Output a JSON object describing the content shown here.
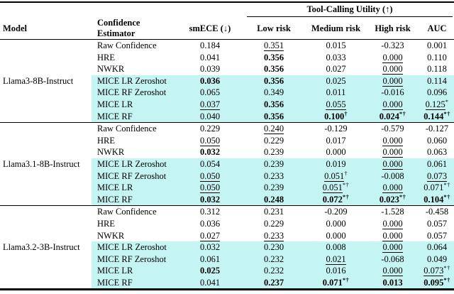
{
  "header": {
    "span_title": "Tool-Calling Utility (↑)",
    "col_model": "Model",
    "col_estimator": "Confidence Estimator",
    "col_smece": "smECE (↓)",
    "subcols": [
      "Low risk",
      "Medium risk",
      "High risk",
      "AUC"
    ]
  },
  "colors": {
    "highlight": "#c5f5f3",
    "rule": "#000000",
    "background": "#ffffff"
  },
  "chart_data": {
    "type": "table",
    "title": "Tool-Calling Utility (↑)",
    "columns": [
      "Model",
      "Confidence Estimator",
      "smECE (↓)",
      "Low risk",
      "Medium risk",
      "High risk",
      "AUC"
    ]
  },
  "groups": [
    {
      "model": "Llama3-8B-Instruct",
      "rows": [
        {
          "estimator": "Raw Confidence",
          "highlighted": false,
          "values": [
            {
              "text": "0.184",
              "bold": false,
              "underline": false,
              "sup": ""
            },
            {
              "text": "0.351",
              "bold": false,
              "underline": true,
              "sup": ""
            },
            {
              "text": "0.015",
              "bold": false,
              "underline": false,
              "sup": ""
            },
            {
              "text": "-0.323",
              "bold": false,
              "underline": false,
              "sup": ""
            },
            {
              "text": "0.001",
              "bold": false,
              "underline": false,
              "sup": ""
            }
          ]
        },
        {
          "estimator": "HRE",
          "highlighted": false,
          "values": [
            {
              "text": "0.041",
              "bold": false,
              "underline": false,
              "sup": ""
            },
            {
              "text": "0.356",
              "bold": true,
              "underline": false,
              "sup": ""
            },
            {
              "text": "0.033",
              "bold": false,
              "underline": false,
              "sup": ""
            },
            {
              "text": "0.000",
              "bold": false,
              "underline": true,
              "sup": ""
            },
            {
              "text": "0.110",
              "bold": false,
              "underline": false,
              "sup": ""
            }
          ]
        },
        {
          "estimator": "NWKR",
          "highlighted": false,
          "values": [
            {
              "text": "0.039",
              "bold": false,
              "underline": false,
              "sup": ""
            },
            {
              "text": "0.356",
              "bold": true,
              "underline": false,
              "sup": ""
            },
            {
              "text": "0.027",
              "bold": false,
              "underline": false,
              "sup": ""
            },
            {
              "text": "0.000",
              "bold": false,
              "underline": true,
              "sup": ""
            },
            {
              "text": "0.118",
              "bold": false,
              "underline": false,
              "sup": ""
            }
          ]
        },
        {
          "estimator": "MICE LR Zeroshot",
          "highlighted": true,
          "values": [
            {
              "text": "0.036",
              "bold": true,
              "underline": false,
              "sup": ""
            },
            {
              "text": "0.356",
              "bold": true,
              "underline": false,
              "sup": ""
            },
            {
              "text": "0.025",
              "bold": false,
              "underline": false,
              "sup": ""
            },
            {
              "text": "0.000",
              "bold": false,
              "underline": true,
              "sup": ""
            },
            {
              "text": "0.114",
              "bold": false,
              "underline": false,
              "sup": ""
            }
          ]
        },
        {
          "estimator": "MICE RF Zeroshot",
          "highlighted": true,
          "values": [
            {
              "text": "0.065",
              "bold": false,
              "underline": false,
              "sup": ""
            },
            {
              "text": "0.349",
              "bold": false,
              "underline": false,
              "sup": ""
            },
            {
              "text": "0.011",
              "bold": false,
              "underline": false,
              "sup": ""
            },
            {
              "text": "-0.016",
              "bold": false,
              "underline": false,
              "sup": ""
            },
            {
              "text": "0.096",
              "bold": false,
              "underline": false,
              "sup": ""
            }
          ]
        },
        {
          "estimator": "MICE LR",
          "highlighted": true,
          "values": [
            {
              "text": "0.037",
              "bold": false,
              "underline": true,
              "sup": ""
            },
            {
              "text": "0.356",
              "bold": true,
              "underline": false,
              "sup": ""
            },
            {
              "text": "0.055",
              "bold": false,
              "underline": true,
              "sup": ""
            },
            {
              "text": "0.000",
              "bold": false,
              "underline": true,
              "sup": ""
            },
            {
              "text": "0.125",
              "bold": false,
              "underline": true,
              "sup": "*"
            }
          ]
        },
        {
          "estimator": "MICE RF",
          "highlighted": true,
          "values": [
            {
              "text": "0.040",
              "bold": false,
              "underline": false,
              "sup": ""
            },
            {
              "text": "0.356",
              "bold": true,
              "underline": false,
              "sup": ""
            },
            {
              "text": "0.100",
              "bold": true,
              "underline": false,
              "sup": "†"
            },
            {
              "text": "0.024",
              "bold": true,
              "underline": false,
              "sup": "*†"
            },
            {
              "text": "0.144",
              "bold": true,
              "underline": false,
              "sup": "*†"
            }
          ]
        }
      ]
    },
    {
      "model": "Llama3.1-8B-Instruct",
      "rows": [
        {
          "estimator": "Raw Confidence",
          "highlighted": false,
          "values": [
            {
              "text": "0.229",
              "bold": false,
              "underline": false,
              "sup": ""
            },
            {
              "text": "0.240",
              "bold": false,
              "underline": true,
              "sup": ""
            },
            {
              "text": "-0.129",
              "bold": false,
              "underline": false,
              "sup": ""
            },
            {
              "text": "-0.579",
              "bold": false,
              "underline": false,
              "sup": ""
            },
            {
              "text": "-0.127",
              "bold": false,
              "underline": false,
              "sup": ""
            }
          ]
        },
        {
          "estimator": "HRE",
          "highlighted": false,
          "values": [
            {
              "text": "0.050",
              "bold": false,
              "underline": true,
              "sup": ""
            },
            {
              "text": "0.229",
              "bold": false,
              "underline": false,
              "sup": ""
            },
            {
              "text": "0.017",
              "bold": false,
              "underline": false,
              "sup": ""
            },
            {
              "text": "0.000",
              "bold": false,
              "underline": true,
              "sup": ""
            },
            {
              "text": "0.060",
              "bold": false,
              "underline": false,
              "sup": ""
            }
          ]
        },
        {
          "estimator": "NWKR",
          "highlighted": false,
          "values": [
            {
              "text": "0.032",
              "bold": true,
              "underline": false,
              "sup": ""
            },
            {
              "text": "0.239",
              "bold": false,
              "underline": false,
              "sup": ""
            },
            {
              "text": "0.000",
              "bold": false,
              "underline": false,
              "sup": ""
            },
            {
              "text": "0.000",
              "bold": false,
              "underline": true,
              "sup": ""
            },
            {
              "text": "0.063",
              "bold": false,
              "underline": false,
              "sup": ""
            }
          ]
        },
        {
          "estimator": "MICE LR Zeroshot",
          "highlighted": true,
          "values": [
            {
              "text": "0.054",
              "bold": false,
              "underline": false,
              "sup": ""
            },
            {
              "text": "0.239",
              "bold": false,
              "underline": false,
              "sup": ""
            },
            {
              "text": "0.019",
              "bold": false,
              "underline": false,
              "sup": ""
            },
            {
              "text": "0.000",
              "bold": false,
              "underline": true,
              "sup": ""
            },
            {
              "text": "0.061",
              "bold": false,
              "underline": false,
              "sup": ""
            }
          ]
        },
        {
          "estimator": "MICE RF Zeroshot",
          "highlighted": true,
          "values": [
            {
              "text": "0.050",
              "bold": false,
              "underline": true,
              "sup": ""
            },
            {
              "text": "0.233",
              "bold": false,
              "underline": false,
              "sup": ""
            },
            {
              "text": "0.051",
              "bold": false,
              "underline": true,
              "sup": "†"
            },
            {
              "text": "-0.008",
              "bold": false,
              "underline": false,
              "sup": ""
            },
            {
              "text": "0.073",
              "bold": false,
              "underline": true,
              "sup": ""
            }
          ]
        },
        {
          "estimator": "MICE LR",
          "highlighted": true,
          "values": [
            {
              "text": "0.050",
              "bold": false,
              "underline": true,
              "sup": ""
            },
            {
              "text": "0.239",
              "bold": false,
              "underline": false,
              "sup": ""
            },
            {
              "text": "0.051",
              "bold": false,
              "underline": true,
              "sup": "*†"
            },
            {
              "text": "0.000",
              "bold": false,
              "underline": true,
              "sup": ""
            },
            {
              "text": "0.071",
              "bold": false,
              "underline": false,
              "sup": "*†"
            }
          ]
        },
        {
          "estimator": "MICE RF",
          "highlighted": true,
          "values": [
            {
              "text": "0.032",
              "bold": true,
              "underline": false,
              "sup": ""
            },
            {
              "text": "0.248",
              "bold": true,
              "underline": false,
              "sup": ""
            },
            {
              "text": "0.072",
              "bold": true,
              "underline": false,
              "sup": "*†"
            },
            {
              "text": "0.023",
              "bold": true,
              "underline": false,
              "sup": "*†"
            },
            {
              "text": "0.104",
              "bold": true,
              "underline": false,
              "sup": "*†"
            }
          ]
        }
      ]
    },
    {
      "model": "Llama3.2-3B-Instruct",
      "rows": [
        {
          "estimator": "Raw Confidence",
          "highlighted": false,
          "values": [
            {
              "text": "0.312",
              "bold": false,
              "underline": false,
              "sup": ""
            },
            {
              "text": "0.231",
              "bold": false,
              "underline": false,
              "sup": ""
            },
            {
              "text": "-0.209",
              "bold": false,
              "underline": false,
              "sup": ""
            },
            {
              "text": "-1.528",
              "bold": false,
              "underline": false,
              "sup": ""
            },
            {
              "text": "-0.458",
              "bold": false,
              "underline": false,
              "sup": ""
            }
          ]
        },
        {
          "estimator": "HRE",
          "highlighted": false,
          "values": [
            {
              "text": "0.036",
              "bold": false,
              "underline": false,
              "sup": ""
            },
            {
              "text": "0.229",
              "bold": false,
              "underline": false,
              "sup": ""
            },
            {
              "text": "0.000",
              "bold": false,
              "underline": false,
              "sup": ""
            },
            {
              "text": "0.000",
              "bold": false,
              "underline": true,
              "sup": ""
            },
            {
              "text": "0.057",
              "bold": false,
              "underline": false,
              "sup": ""
            }
          ]
        },
        {
          "estimator": "NWKR",
          "highlighted": false,
          "values": [
            {
              "text": "0.027",
              "bold": false,
              "underline": true,
              "sup": ""
            },
            {
              "text": "0.233",
              "bold": false,
              "underline": true,
              "sup": ""
            },
            {
              "text": "0.000",
              "bold": false,
              "underline": false,
              "sup": ""
            },
            {
              "text": "0.000",
              "bold": false,
              "underline": true,
              "sup": ""
            },
            {
              "text": "0.057",
              "bold": false,
              "underline": false,
              "sup": ""
            }
          ]
        },
        {
          "estimator": "MICE LR Zeroshot",
          "highlighted": true,
          "values": [
            {
              "text": "0.032",
              "bold": false,
              "underline": false,
              "sup": ""
            },
            {
              "text": "0.230",
              "bold": false,
              "underline": false,
              "sup": ""
            },
            {
              "text": "0.008",
              "bold": false,
              "underline": false,
              "sup": ""
            },
            {
              "text": "0.000",
              "bold": false,
              "underline": true,
              "sup": ""
            },
            {
              "text": "0.064",
              "bold": false,
              "underline": false,
              "sup": ""
            }
          ]
        },
        {
          "estimator": "MICE RF Zeroshot",
          "highlighted": true,
          "values": [
            {
              "text": "0.061",
              "bold": false,
              "underline": false,
              "sup": ""
            },
            {
              "text": "0.232",
              "bold": false,
              "underline": false,
              "sup": ""
            },
            {
              "text": "0.021",
              "bold": false,
              "underline": true,
              "sup": ""
            },
            {
              "text": "-0.068",
              "bold": false,
              "underline": false,
              "sup": ""
            },
            {
              "text": "0.049",
              "bold": false,
              "underline": false,
              "sup": ""
            }
          ]
        },
        {
          "estimator": "MICE LR",
          "highlighted": true,
          "values": [
            {
              "text": "0.025",
              "bold": true,
              "underline": false,
              "sup": ""
            },
            {
              "text": "0.232",
              "bold": false,
              "underline": false,
              "sup": ""
            },
            {
              "text": "0.016",
              "bold": false,
              "underline": false,
              "sup": ""
            },
            {
              "text": "0.000",
              "bold": false,
              "underline": true,
              "sup": ""
            },
            {
              "text": "0.073",
              "bold": false,
              "underline": true,
              "sup": "*†"
            }
          ]
        },
        {
          "estimator": "MICE RF",
          "highlighted": true,
          "values": [
            {
              "text": "0.041",
              "bold": false,
              "underline": false,
              "sup": ""
            },
            {
              "text": "0.237",
              "bold": true,
              "underline": false,
              "sup": ""
            },
            {
              "text": "0.071",
              "bold": true,
              "underline": false,
              "sup": "*†"
            },
            {
              "text": "0.013",
              "bold": true,
              "underline": false,
              "sup": ""
            },
            {
              "text": "0.095",
              "bold": true,
              "underline": false,
              "sup": "*†"
            }
          ]
        }
      ]
    }
  ]
}
